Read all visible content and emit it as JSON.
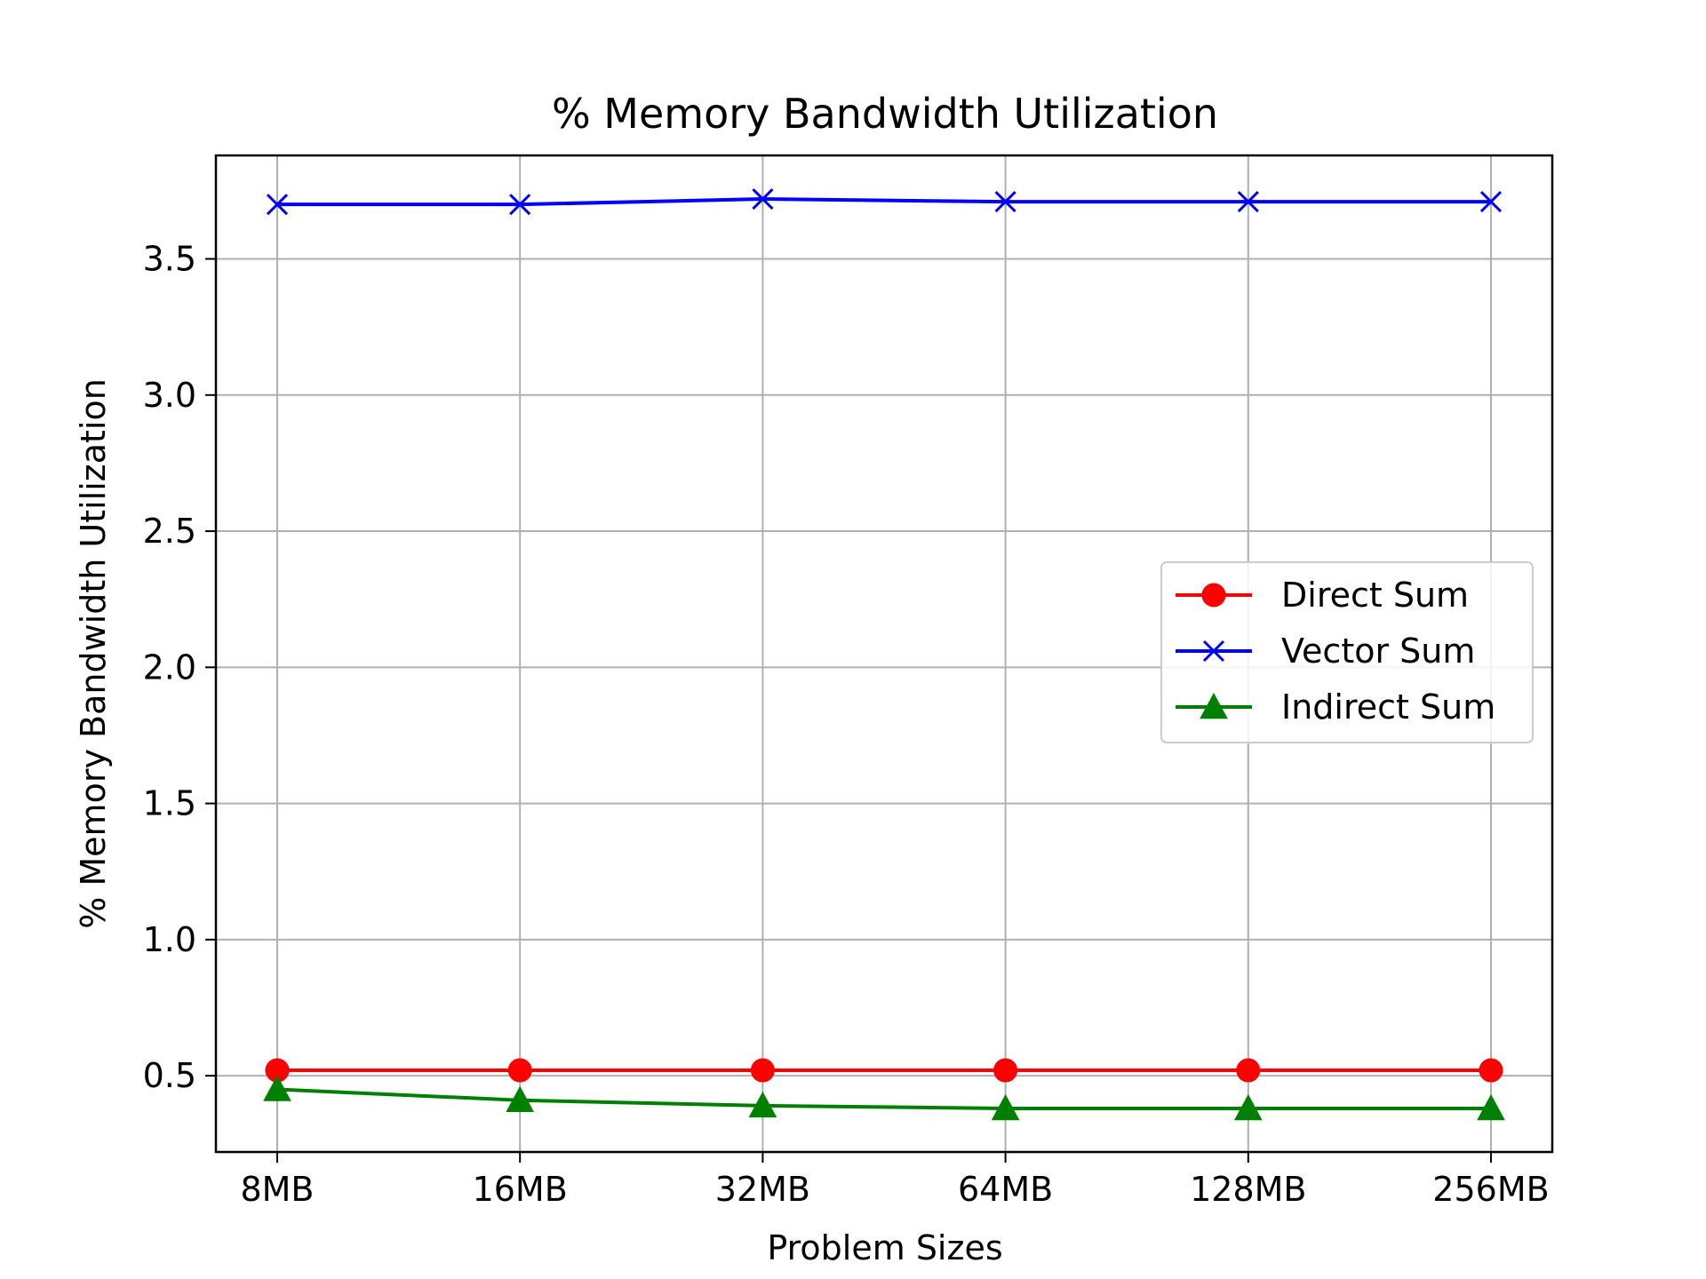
{
  "chart_data": {
    "type": "line",
    "title": "% Memory Bandwidth Utilization",
    "xlabel": "Problem Sizes",
    "ylabel": "% Memory Bandwidth Utilization",
    "categories": [
      "8MB",
      "16MB",
      "32MB",
      "64MB",
      "128MB",
      "256MB"
    ],
    "ylim": [
      0.22,
      3.88
    ],
    "yticks": [
      0.5,
      1.0,
      1.5,
      2.0,
      2.5,
      3.0,
      3.5
    ],
    "ytick_labels": [
      "0.5",
      "1.0",
      "1.5",
      "2.0",
      "2.5",
      "3.0",
      "3.5"
    ],
    "grid": true,
    "legend_position": "center-right",
    "series": [
      {
        "name": "Direct Sum",
        "color": "#ff0000",
        "marker": "circle",
        "values": [
          0.52,
          0.52,
          0.52,
          0.52,
          0.52,
          0.52
        ]
      },
      {
        "name": "Vector Sum",
        "color": "#0000ff",
        "marker": "x",
        "values": [
          3.7,
          3.7,
          3.72,
          3.71,
          3.71,
          3.71
        ]
      },
      {
        "name": "Indirect Sum",
        "color": "#008000",
        "marker": "triangle",
        "values": [
          0.45,
          0.41,
          0.39,
          0.38,
          0.38,
          0.38
        ]
      }
    ]
  }
}
